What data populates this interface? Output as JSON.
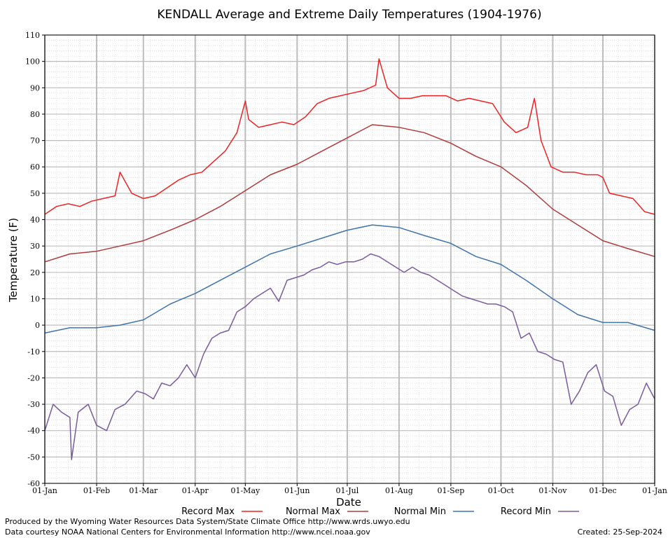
{
  "chart_data": {
    "type": "line",
    "title": "KENDALL Average and Extreme Daily Temperatures (1904-1976)",
    "xlabel": "Date",
    "ylabel": "Temperature (F)",
    "ylim": [
      -60,
      110
    ],
    "yticks": [
      -60,
      -50,
      -40,
      -30,
      -20,
      -10,
      0,
      10,
      20,
      30,
      40,
      50,
      60,
      70,
      80,
      90,
      100,
      110
    ],
    "xlim_days": [
      0,
      365
    ],
    "xticks": [
      {
        "label": "01-Jan",
        "day": 0
      },
      {
        "label": "01-Feb",
        "day": 31
      },
      {
        "label": "01-Mar",
        "day": 59
      },
      {
        "label": "01-Apr",
        "day": 90
      },
      {
        "label": "01-May",
        "day": 120
      },
      {
        "label": "01-Jun",
        "day": 151
      },
      {
        "label": "01-Jul",
        "day": 181
      },
      {
        "label": "01-Aug",
        "day": 212
      },
      {
        "label": "01-Sep",
        "day": 243
      },
      {
        "label": "01-Oct",
        "day": 273
      },
      {
        "label": "01-Nov",
        "day": 304
      },
      {
        "label": "01-Dec",
        "day": 334
      },
      {
        "label": "01-Jan",
        "day": 365
      }
    ],
    "grid": true,
    "legend_position": "bottom",
    "series": [
      {
        "name": "Record Max",
        "color": "#ee2222",
        "points": [
          [
            0,
            42
          ],
          [
            7,
            45
          ],
          [
            14,
            46
          ],
          [
            21,
            45
          ],
          [
            28,
            47
          ],
          [
            35,
            48
          ],
          [
            42,
            49
          ],
          [
            45,
            58
          ],
          [
            52,
            50
          ],
          [
            59,
            48
          ],
          [
            66,
            49
          ],
          [
            73,
            52
          ],
          [
            80,
            55
          ],
          [
            87,
            57
          ],
          [
            94,
            58
          ],
          [
            101,
            62
          ],
          [
            108,
            66
          ],
          [
            115,
            73
          ],
          [
            120,
            85
          ],
          [
            122,
            78
          ],
          [
            128,
            75
          ],
          [
            135,
            76
          ],
          [
            142,
            77
          ],
          [
            149,
            76
          ],
          [
            156,
            79
          ],
          [
            163,
            84
          ],
          [
            170,
            86
          ],
          [
            177,
            87
          ],
          [
            184,
            88
          ],
          [
            191,
            89
          ],
          [
            198,
            91
          ],
          [
            200,
            101
          ],
          [
            205,
            90
          ],
          [
            212,
            86
          ],
          [
            219,
            86
          ],
          [
            226,
            87
          ],
          [
            233,
            87
          ],
          [
            240,
            87
          ],
          [
            247,
            85
          ],
          [
            254,
            86
          ],
          [
            261,
            85
          ],
          [
            268,
            84
          ],
          [
            275,
            77
          ],
          [
            282,
            73
          ],
          [
            289,
            75
          ],
          [
            293,
            86
          ],
          [
            297,
            70
          ],
          [
            303,
            60
          ],
          [
            310,
            58
          ],
          [
            317,
            58
          ],
          [
            324,
            57
          ],
          [
            331,
            57
          ],
          [
            334,
            56
          ],
          [
            338,
            50
          ],
          [
            345,
            49
          ],
          [
            352,
            48
          ],
          [
            359,
            43
          ],
          [
            365,
            42
          ]
        ]
      },
      {
        "name": "Normal Max",
        "color": "#b03a3a",
        "points": [
          [
            0,
            24
          ],
          [
            15,
            27
          ],
          [
            31,
            28
          ],
          [
            45,
            30
          ],
          [
            59,
            32
          ],
          [
            75,
            36
          ],
          [
            90,
            40
          ],
          [
            105,
            45
          ],
          [
            120,
            51
          ],
          [
            135,
            57
          ],
          [
            151,
            61
          ],
          [
            166,
            66
          ],
          [
            181,
            71
          ],
          [
            196,
            76
          ],
          [
            212,
            75
          ],
          [
            227,
            73
          ],
          [
            243,
            69
          ],
          [
            258,
            64
          ],
          [
            273,
            60
          ],
          [
            288,
            53
          ],
          [
            304,
            44
          ],
          [
            319,
            38
          ],
          [
            334,
            32
          ],
          [
            349,
            29
          ],
          [
            365,
            26
          ]
        ]
      },
      {
        "name": "Normal Min",
        "color": "#3f74ab",
        "points": [
          [
            0,
            -3
          ],
          [
            15,
            -1
          ],
          [
            31,
            -1
          ],
          [
            45,
            0
          ],
          [
            59,
            2
          ],
          [
            75,
            8
          ],
          [
            90,
            12
          ],
          [
            105,
            17
          ],
          [
            120,
            22
          ],
          [
            135,
            27
          ],
          [
            151,
            30
          ],
          [
            166,
            33
          ],
          [
            181,
            36
          ],
          [
            196,
            38
          ],
          [
            212,
            37
          ],
          [
            227,
            34
          ],
          [
            243,
            31
          ],
          [
            258,
            26
          ],
          [
            273,
            23
          ],
          [
            288,
            17
          ],
          [
            304,
            10
          ],
          [
            319,
            4
          ],
          [
            334,
            1
          ],
          [
            349,
            1
          ],
          [
            365,
            -2
          ]
        ]
      },
      {
        "name": "Record Min",
        "color": "#7a5a9e",
        "points": [
          [
            0,
            -40
          ],
          [
            5,
            -30
          ],
          [
            10,
            -33
          ],
          [
            15,
            -35
          ],
          [
            16,
            -51
          ],
          [
            20,
            -33
          ],
          [
            26,
            -30
          ],
          [
            31,
            -38
          ],
          [
            37,
            -40
          ],
          [
            42,
            -32
          ],
          [
            48,
            -30
          ],
          [
            55,
            -25
          ],
          [
            60,
            -26
          ],
          [
            65,
            -28
          ],
          [
            70,
            -22
          ],
          [
            75,
            -23
          ],
          [
            80,
            -20
          ],
          [
            85,
            -15
          ],
          [
            90,
            -20
          ],
          [
            95,
            -11
          ],
          [
            100,
            -5
          ],
          [
            105,
            -3
          ],
          [
            110,
            -2
          ],
          [
            115,
            5
          ],
          [
            120,
            7
          ],
          [
            125,
            10
          ],
          [
            130,
            12
          ],
          [
            135,
            14
          ],
          [
            140,
            9
          ],
          [
            145,
            17
          ],
          [
            150,
            18
          ],
          [
            155,
            19
          ],
          [
            160,
            21
          ],
          [
            165,
            22
          ],
          [
            170,
            24
          ],
          [
            175,
            23
          ],
          [
            180,
            24
          ],
          [
            185,
            24
          ],
          [
            190,
            25
          ],
          [
            195,
            27
          ],
          [
            200,
            26
          ],
          [
            205,
            24
          ],
          [
            210,
            22
          ],
          [
            215,
            20
          ],
          [
            220,
            22
          ],
          [
            225,
            20
          ],
          [
            230,
            19
          ],
          [
            235,
            17
          ],
          [
            240,
            15
          ],
          [
            245,
            13
          ],
          [
            250,
            11
          ],
          [
            255,
            10
          ],
          [
            260,
            9
          ],
          [
            265,
            8
          ],
          [
            270,
            8
          ],
          [
            275,
            7
          ],
          [
            280,
            5
          ],
          [
            285,
            -5
          ],
          [
            290,
            -3
          ],
          [
            295,
            -10
          ],
          [
            300,
            -11
          ],
          [
            305,
            -13
          ],
          [
            310,
            -14
          ],
          [
            315,
            -30
          ],
          [
            320,
            -25
          ],
          [
            325,
            -18
          ],
          [
            330,
            -15
          ],
          [
            335,
            -25
          ],
          [
            340,
            -27
          ],
          [
            345,
            -38
          ],
          [
            350,
            -32
          ],
          [
            355,
            -30
          ],
          [
            360,
            -22
          ],
          [
            365,
            -28
          ]
        ]
      }
    ]
  },
  "footer": {
    "produced_by": "Produced by the Wyoming Water Resources Data System/State Climate Office http://www.wrds.uwyo.edu",
    "courtesy": "Data courtesy NOAA National Centers for Environmental Information http://www.ncei.noaa.gov",
    "created": "Created:  25-Sep-2024"
  }
}
